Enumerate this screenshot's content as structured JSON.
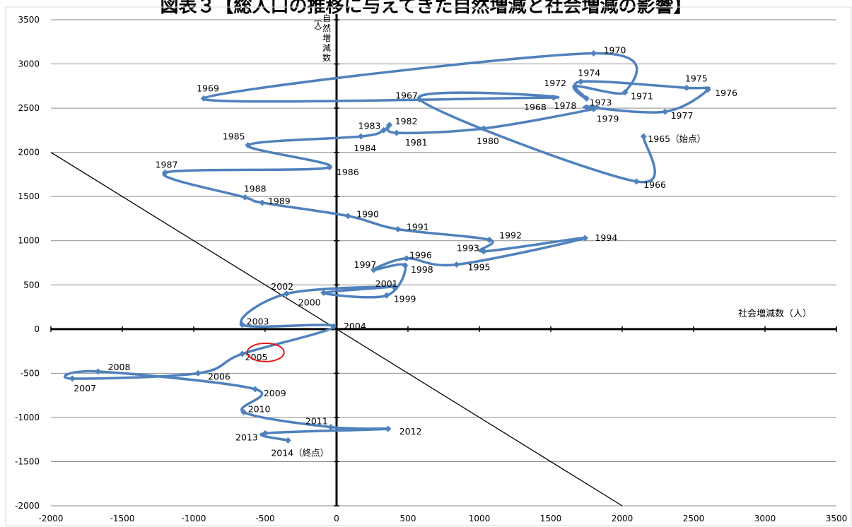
{
  "chart_data": {
    "type": "scatter",
    "title": "図表３【総人口の推移に与えてきた自然増減と社会増減の影響】",
    "xlabel": "社会増減数（人）",
    "ylabel": "自然増減数（人）",
    "xlim": [
      -2000,
      3500
    ],
    "ylim": [
      -2000,
      3500
    ],
    "xticks": [
      "-2000",
      "-1500",
      "-1000",
      "-500",
      "0",
      "500",
      "1000",
      "1500",
      "2000",
      "2500",
      "3000",
      "3500"
    ],
    "yticks": [
      "3500",
      "3000",
      "2500",
      "2000",
      "1500",
      "1000",
      "500",
      "0",
      "-500",
      "-1000",
      "-1500",
      "-2000"
    ],
    "grid": "horizontal",
    "line_color": "#4f81bd",
    "marker_color": "#4f81bd",
    "reference_line": {
      "x": [
        -2000,
        2000
      ],
      "y": [
        2000,
        -2000
      ]
    },
    "highlighted_label": "2005",
    "highlight_color": "#e31a1c",
    "points": [
      {
        "label": "1965（始点）",
        "x": 2150,
        "y": 2180
      },
      {
        "label": "1966",
        "x": 2100,
        "y": 1670
      },
      {
        "label": "1967",
        "x": 580,
        "y": 2600
      },
      {
        "label": "1968",
        "x": 1520,
        "y": 2620
      },
      {
        "label": "1969",
        "x": -930,
        "y": 2610
      },
      {
        "label": "1970",
        "x": 1800,
        "y": 3120
      },
      {
        "label": "1971",
        "x": 2020,
        "y": 2680
      },
      {
        "label": "1972",
        "x": 1670,
        "y": 2750
      },
      {
        "label": "1973",
        "x": 1750,
        "y": 2610
      },
      {
        "label": "1974",
        "x": 1710,
        "y": 2800
      },
      {
        "label": "1975",
        "x": 2450,
        "y": 2730
      },
      {
        "label": "1976",
        "x": 2600,
        "y": 2710
      },
      {
        "label": "1977",
        "x": 2300,
        "y": 2460
      },
      {
        "label": "1978",
        "x": 1750,
        "y": 2510
      },
      {
        "label": "1979",
        "x": 1800,
        "y": 2490
      },
      {
        "label": "1980",
        "x": 1030,
        "y": 2270
      },
      {
        "label": "1981",
        "x": 420,
        "y": 2220
      },
      {
        "label": "1982",
        "x": 370,
        "y": 2310
      },
      {
        "label": "1983",
        "x": 330,
        "y": 2250
      },
      {
        "label": "1984",
        "x": 170,
        "y": 2180
      },
      {
        "label": "1985",
        "x": -620,
        "y": 2080
      },
      {
        "label": "1986",
        "x": -50,
        "y": 1830
      },
      {
        "label": "1987",
        "x": -1200,
        "y": 1770
      },
      {
        "label": "1988",
        "x": -640,
        "y": 1490
      },
      {
        "label": "1989",
        "x": -520,
        "y": 1430
      },
      {
        "label": "1990",
        "x": 80,
        "y": 1280
      },
      {
        "label": "1991",
        "x": 430,
        "y": 1130
      },
      {
        "label": "1992",
        "x": 1070,
        "y": 1010
      },
      {
        "label": "1993",
        "x": 1030,
        "y": 880
      },
      {
        "label": "1994",
        "x": 1740,
        "y": 1030
      },
      {
        "label": "1995",
        "x": 840,
        "y": 730
      },
      {
        "label": "1996",
        "x": 490,
        "y": 800
      },
      {
        "label": "1997",
        "x": 260,
        "y": 670
      },
      {
        "label": "1998",
        "x": 480,
        "y": 720
      },
      {
        "label": "1999",
        "x": 350,
        "y": 380
      },
      {
        "label": "2000",
        "x": -90,
        "y": 410
      },
      {
        "label": "2001",
        "x": 400,
        "y": 480
      },
      {
        "label": "2002",
        "x": -350,
        "y": 400
      },
      {
        "label": "2003",
        "x": -660,
        "y": 50
      },
      {
        "label": "2004",
        "x": -20,
        "y": 30
      },
      {
        "label": "2005",
        "x": -660,
        "y": -280
      },
      {
        "label": "2006",
        "x": -970,
        "y": -500
      },
      {
        "label": "2007",
        "x": -1850,
        "y": -560
      },
      {
        "label": "2008",
        "x": -1670,
        "y": -480
      },
      {
        "label": "2009",
        "x": -570,
        "y": -680
      },
      {
        "label": "2010",
        "x": -650,
        "y": -940
      },
      {
        "label": "2011",
        "x": -40,
        "y": -1110
      },
      {
        "label": "2012",
        "x": 360,
        "y": -1130
      },
      {
        "label": "2013",
        "x": -500,
        "y": -1180
      },
      {
        "label": "2014（終点）",
        "x": -340,
        "y": -1260
      }
    ]
  }
}
